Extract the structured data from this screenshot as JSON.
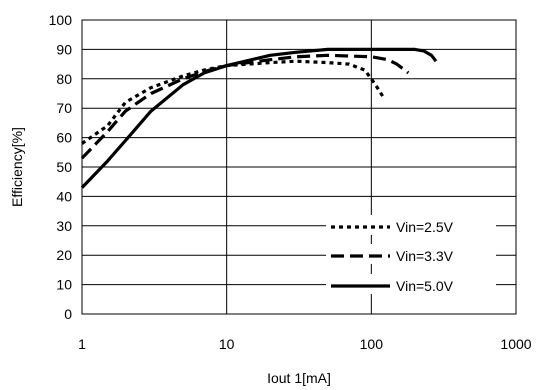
{
  "chart_data": {
    "type": "line",
    "xlabel": "Iout 1[mA]",
    "ylabel": "Efficiency[%]",
    "x_scale": "log",
    "xlim": [
      1,
      1000
    ],
    "ylim": [
      0,
      100
    ],
    "x_ticks": [
      "1",
      "10",
      "100",
      "1000"
    ],
    "y_ticks": [
      "0",
      "10",
      "20",
      "30",
      "40",
      "50",
      "60",
      "70",
      "80",
      "90",
      "100"
    ],
    "grid": true,
    "legend_position": "lower-right",
    "series": [
      {
        "name": "Vin=2.5V",
        "style": "dotted",
        "x": [
          1,
          1.5,
          2,
          3,
          5,
          7,
          10,
          20,
          30,
          50,
          70,
          90,
          100,
          110,
          120
        ],
        "y": [
          58,
          64,
          72,
          77,
          81,
          83,
          84.5,
          85.5,
          86,
          85.5,
          85,
          83,
          80,
          77,
          74
        ]
      },
      {
        "name": "Vin=3.3V",
        "style": "dashed",
        "x": [
          1,
          1.5,
          2,
          3,
          5,
          7,
          10,
          20,
          30,
          50,
          100,
          130,
          150,
          170,
          180
        ],
        "y": [
          53,
          62,
          69,
          75,
          80,
          82.5,
          84.5,
          86.5,
          87.5,
          88,
          87.5,
          86.5,
          85,
          83,
          82
        ]
      },
      {
        "name": "Vin=5.0V",
        "style": "solid",
        "x": [
          1,
          1.5,
          2,
          3,
          5,
          7,
          10,
          20,
          30,
          50,
          100,
          150,
          200,
          230,
          260,
          280
        ],
        "y": [
          43,
          52,
          59,
          69,
          78,
          82,
          84.5,
          88,
          89,
          90,
          90,
          90,
          90,
          89.5,
          88,
          86
        ]
      }
    ]
  }
}
